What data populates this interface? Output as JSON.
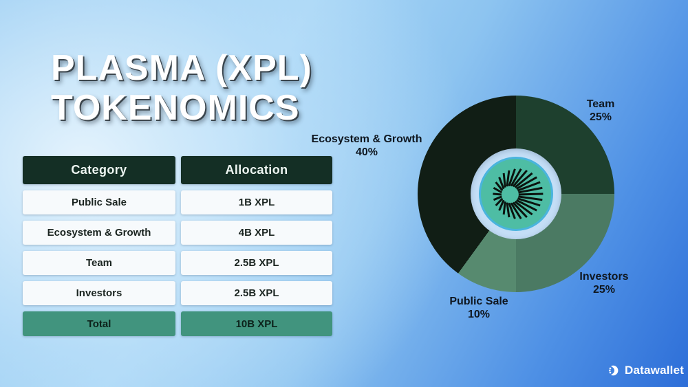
{
  "title": {
    "line1": "PLASMA (XPL)",
    "line2": "TOKENOMICS"
  },
  "table": {
    "header": {
      "category": "Category",
      "allocation": "Allocation"
    },
    "rows": [
      {
        "category": "Public Sale",
        "allocation": "1B XPL"
      },
      {
        "category": "Ecosystem & Growth",
        "allocation": "4B XPL"
      },
      {
        "category": "Team",
        "allocation": "2.5B XPL"
      },
      {
        "category": "Investors",
        "allocation": "2.5B XPL"
      }
    ],
    "total": {
      "category": "Total",
      "allocation": "10B XPL"
    }
  },
  "chart_data": {
    "type": "pie",
    "donut": true,
    "title": "PLASMA (XPL) TOKENOMICS",
    "start_angle_deg": 0,
    "direction": "clockwise",
    "legend_position": "around-chart",
    "center_logo": "plasma-spiral-logo",
    "hole_color": "#c4def6",
    "logo_circle_color": "#4ebda4",
    "segments": [
      {
        "label": "Team",
        "value": 25,
        "pct_label": "25%",
        "color": "#1e402e"
      },
      {
        "label": "Investors",
        "value": 25,
        "pct_label": "25%",
        "color": "#4b7a63"
      },
      {
        "label": "Public Sale",
        "value": 10,
        "pct_label": "10%",
        "color": "#578a6f"
      },
      {
        "label": "Ecosystem & Growth",
        "value": 40,
        "pct_label": "40%",
        "color": "#111e15"
      }
    ]
  },
  "brand": {
    "name": "Datawallet"
  },
  "colors": {
    "header_green": "#142f25",
    "total_green": "#41947e",
    "bg_light_blue": "#a8d6f6",
    "bg_deep_blue": "#2d6ed8",
    "title_white": "#ffffff"
  }
}
